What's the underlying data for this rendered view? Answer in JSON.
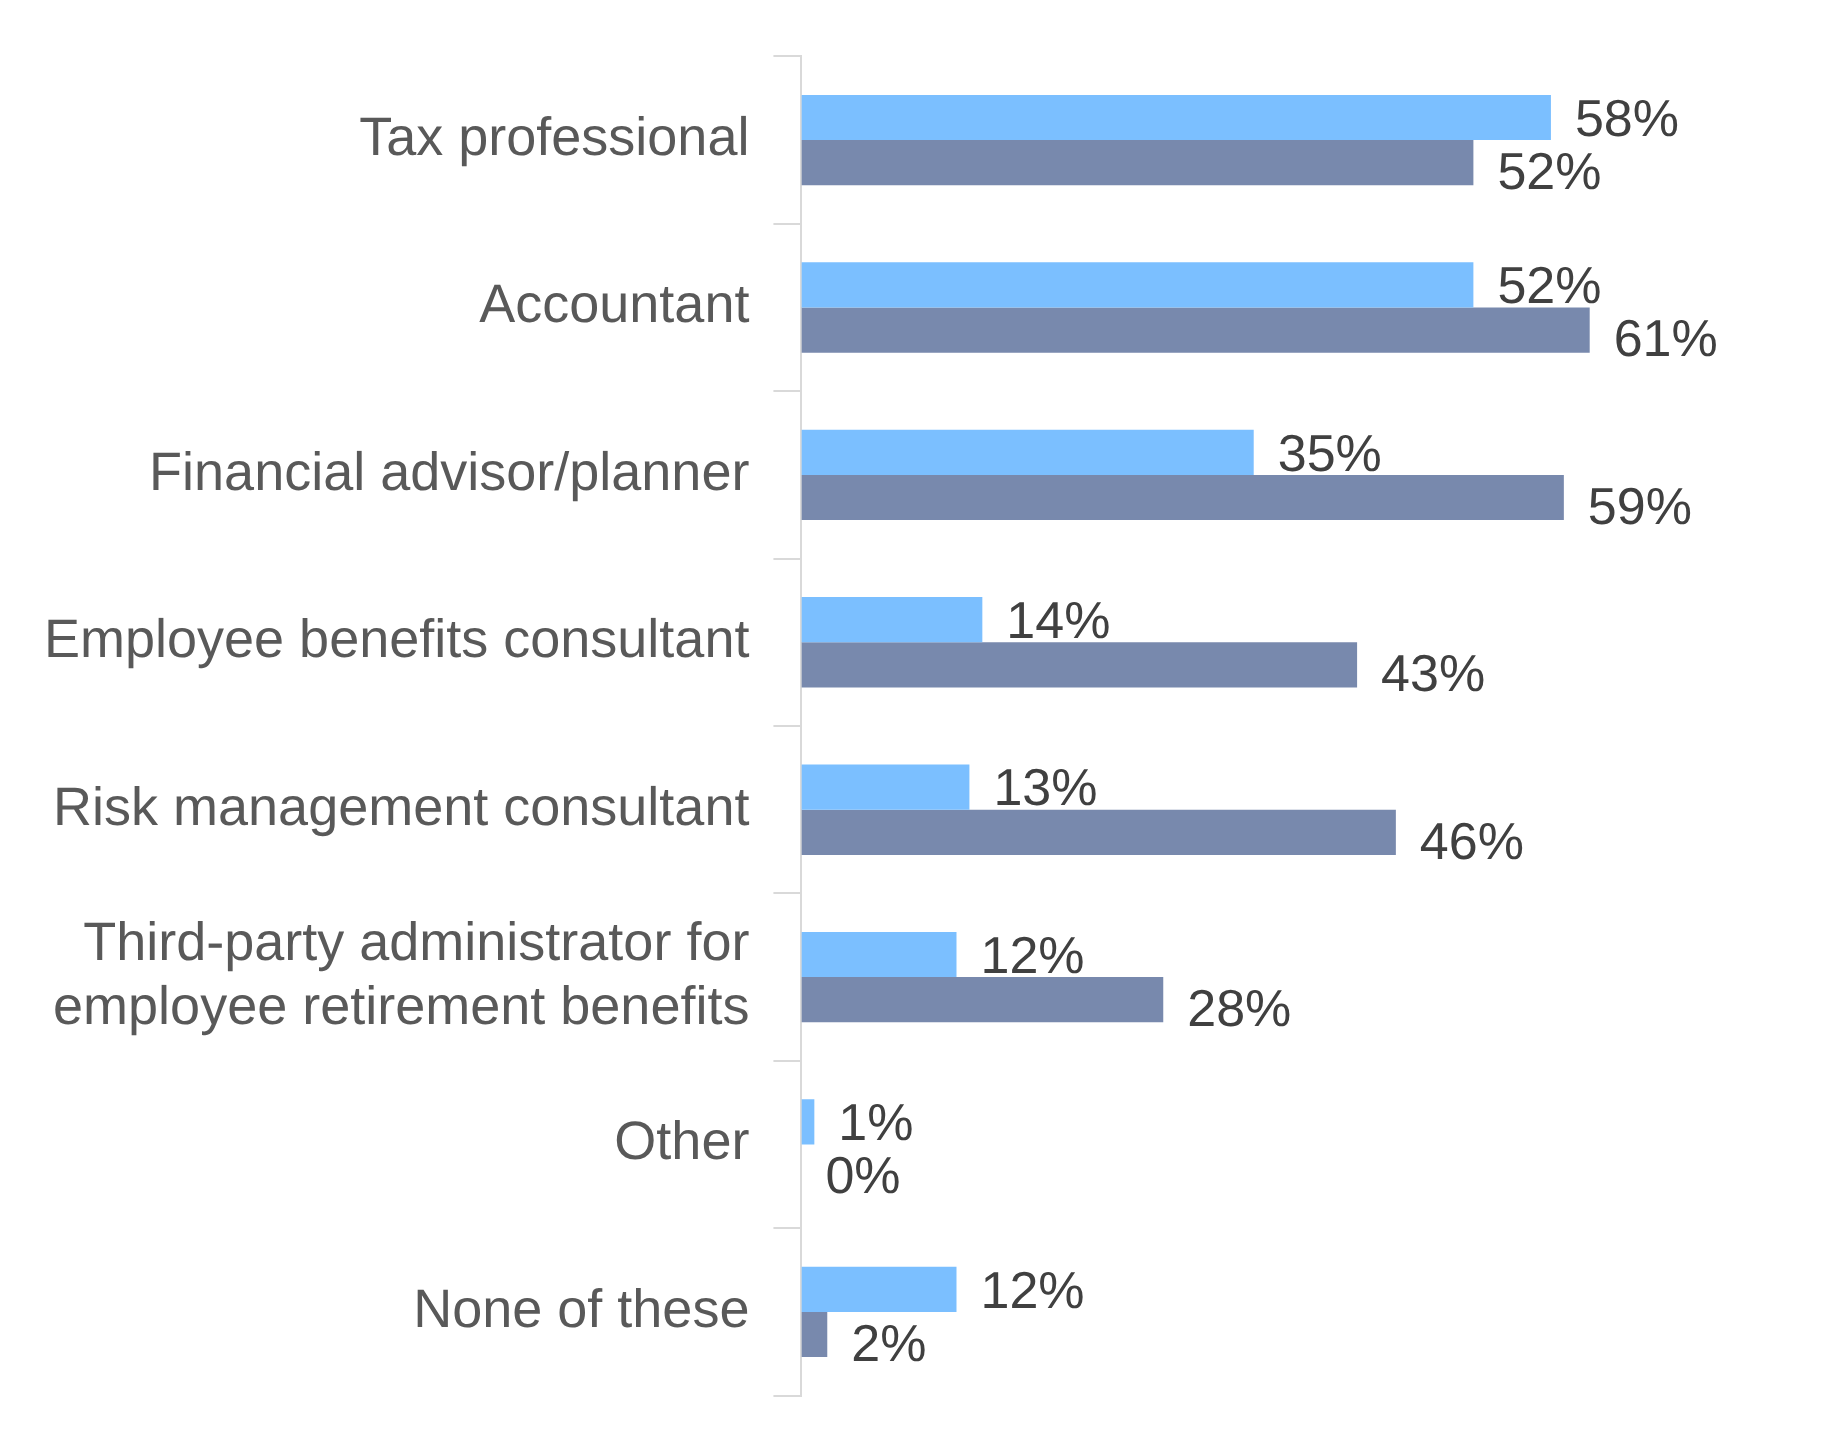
{
  "chart_data": {
    "type": "bar",
    "orientation": "horizontal",
    "categories": [
      "Tax professional",
      "Accountant",
      "Financial advisor/planner",
      "Employee benefits consultant",
      "Risk management consultant",
      "Third-party administrator for employee retirement benefits",
      "Other",
      "None of these"
    ],
    "series": [
      {
        "color": "#7bbfff",
        "values": [
          58,
          52,
          35,
          14,
          13,
          12,
          1,
          12
        ],
        "value_labels": [
          "58%",
          "52%",
          "35%",
          "14%",
          "13%",
          "12%",
          "1%",
          "12%"
        ]
      },
      {
        "color": "#7889ad",
        "values": [
          52,
          61,
          59,
          43,
          46,
          28,
          0,
          2
        ],
        "value_labels": [
          "52%",
          "61%",
          "59%",
          "43%",
          "46%",
          "28%",
          "0%",
          "2%"
        ]
      }
    ],
    "legend": false
  }
}
